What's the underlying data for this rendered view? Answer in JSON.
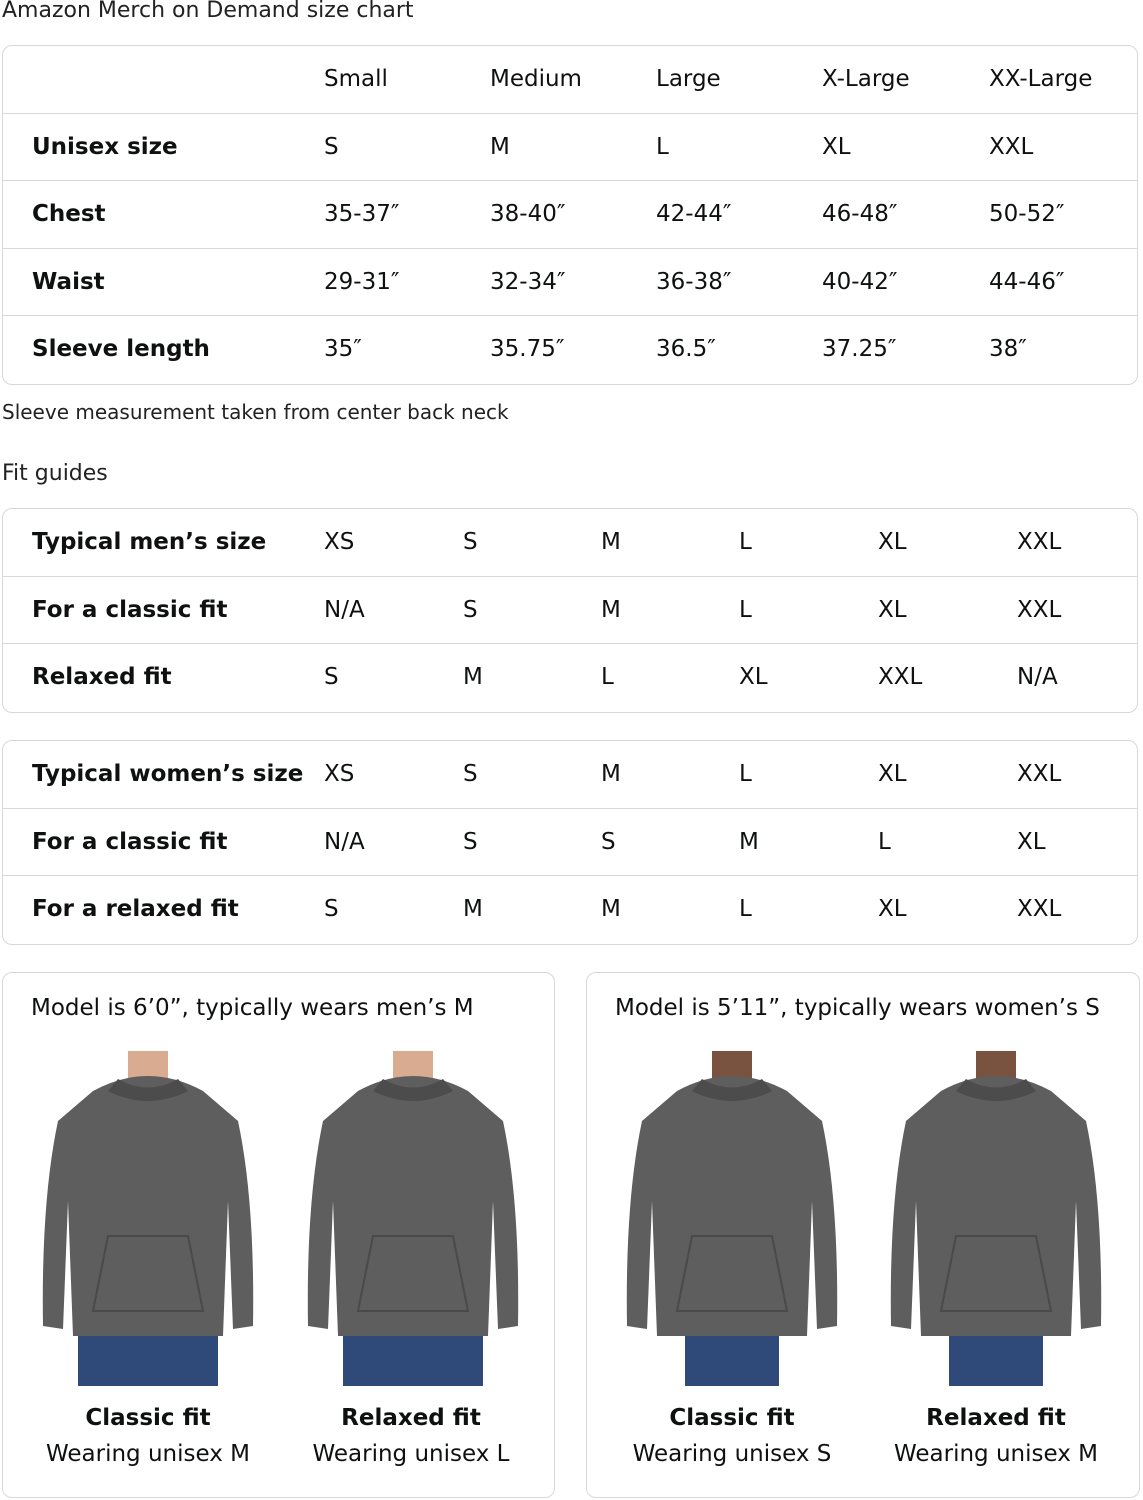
{
  "title": "Amazon Merch on Demand size chart",
  "size_table": {
    "header": [
      "",
      "Small",
      "Medium",
      "Large",
      "X-Large",
      "XX-Large"
    ],
    "rows": [
      [
        "Unisex size",
        "S",
        "M",
        "L",
        "XL",
        "XXL"
      ],
      [
        "Chest",
        "35-37″",
        "38-40″",
        "42-44″",
        "46-48″",
        "50-52″"
      ],
      [
        "Waist",
        "29-31″",
        "32-34″",
        "36-38″",
        "40-42″",
        "44-46″"
      ],
      [
        "Sleeve length",
        "35″",
        "35.75″",
        "36.5″",
        "37.25″",
        "38″"
      ]
    ]
  },
  "sleeve_note": "Sleeve measurement taken from center back neck",
  "fit_guides_title": "Fit guides",
  "mens_table": {
    "rows": [
      [
        "Typical men’s size",
        "XS",
        "S",
        "M",
        "L",
        "XL",
        "XXL"
      ],
      [
        "For a classic fit",
        "N/A",
        "S",
        "M",
        "L",
        "XL",
        "XXL"
      ],
      [
        "Relaxed fit",
        "S",
        "M",
        "L",
        "XL",
        "XXL",
        "N/A"
      ]
    ]
  },
  "womens_table": {
    "rows": [
      [
        "Typical women’s size",
        "XS",
        "S",
        "M",
        "L",
        "XL",
        "XXL"
      ],
      [
        "For a classic fit",
        "N/A",
        "S",
        "S",
        "M",
        "L",
        "XL"
      ],
      [
        "For a relaxed fit",
        "S",
        "M",
        "M",
        "L",
        "XL",
        "XXL"
      ]
    ]
  },
  "models": [
    {
      "caption": "Model is 6’0”, typically wears men’s M",
      "figures": [
        {
          "fit": "Classic fit",
          "wearing": "Wearing unisex M"
        },
        {
          "fit": "Relaxed fit",
          "wearing": "Wearing unisex L"
        }
      ]
    },
    {
      "caption": "Model is 5’11”, typically wears women’s S",
      "figures": [
        {
          "fit": "Classic fit",
          "wearing": "Wearing unisex S"
        },
        {
          "fit": "Relaxed fit",
          "wearing": "Wearing unisex M"
        }
      ]
    }
  ],
  "colors": {
    "border": "#d5d9d9",
    "hoodie": "#5e5e5e",
    "jeans": "#2f4a78"
  }
}
